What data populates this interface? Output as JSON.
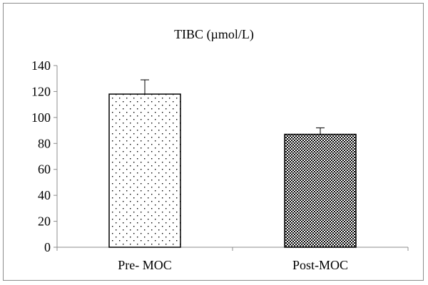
{
  "chart_data": {
    "type": "bar",
    "title": "TIBC (µmol/L)",
    "categories": [
      "Pre- MOC",
      "Post-MOC"
    ],
    "values": [
      118,
      87
    ],
    "error_upper": [
      129,
      92
    ],
    "patterns": [
      "sparse-dots",
      "dense-checker"
    ],
    "ylim": [
      0,
      140
    ],
    "yticks": [
      0,
      20,
      40,
      60,
      80,
      100,
      120,
      140
    ],
    "grid": false,
    "legend": "none"
  }
}
